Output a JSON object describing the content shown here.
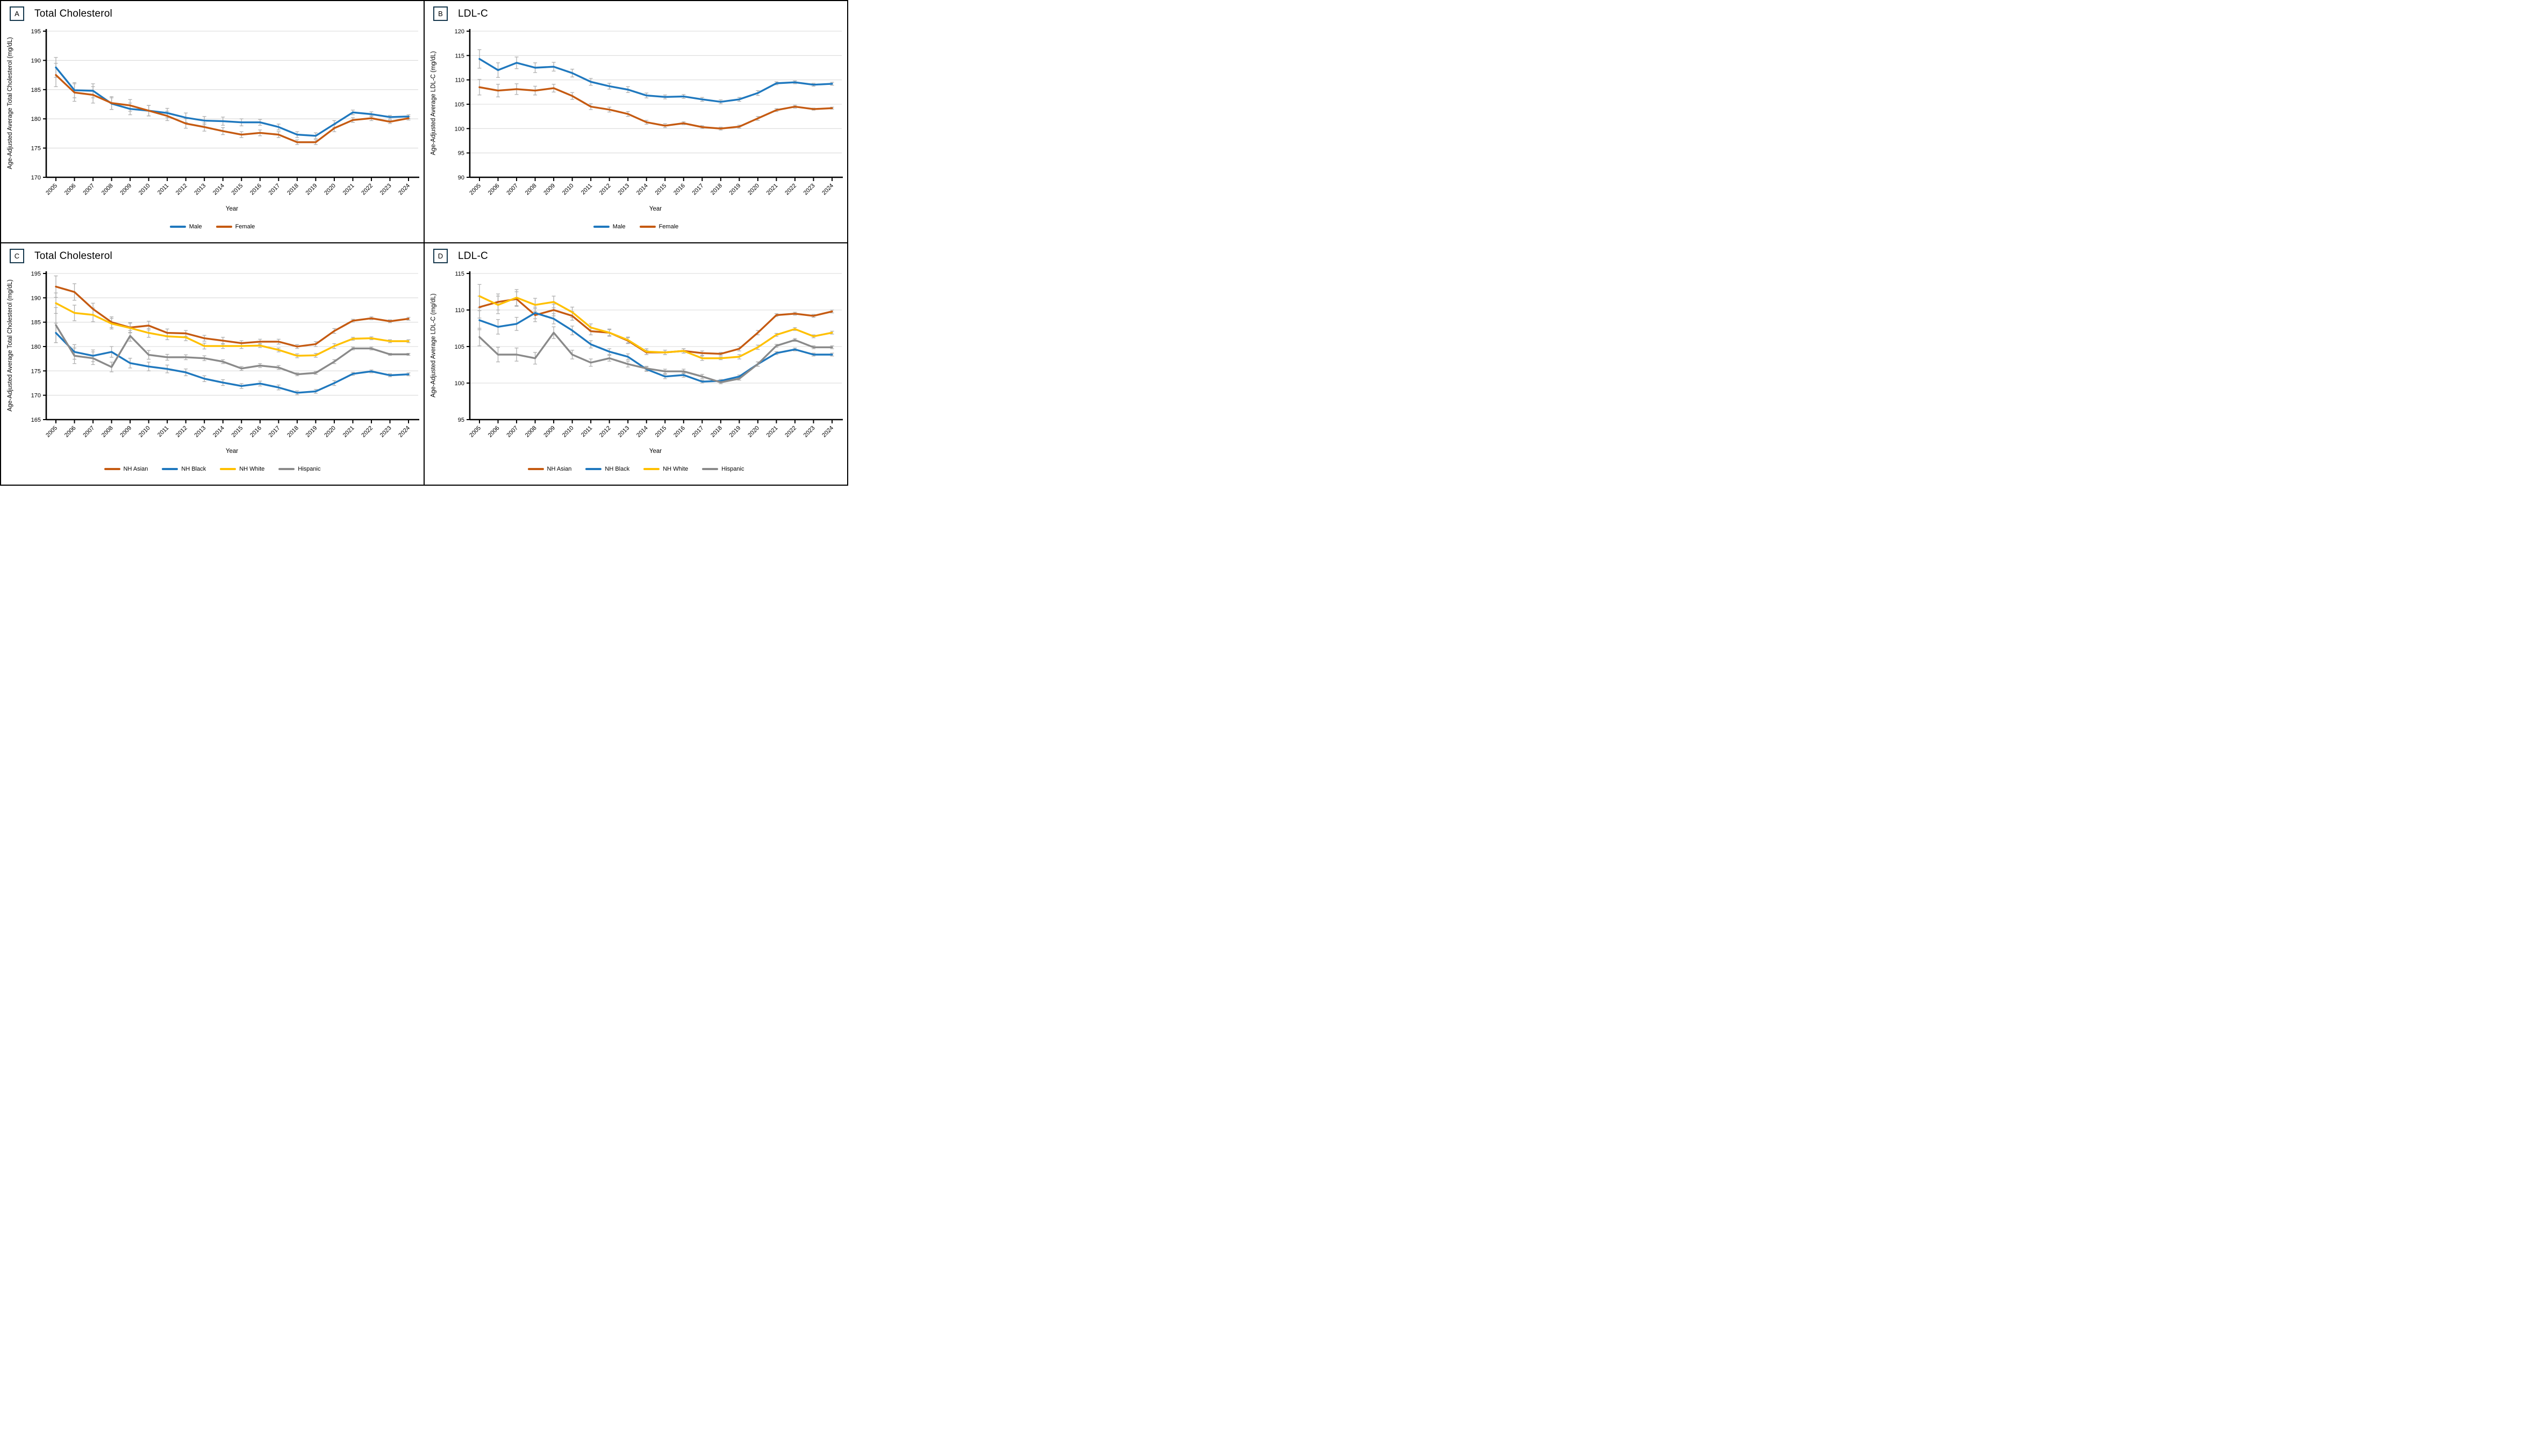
{
  "figure": {
    "background": "#ffffff",
    "border_color": "#000000"
  },
  "palette": {
    "male_blue": "#1F78BE",
    "female_orange": "#C55A11",
    "nh_asian": "#C55A11",
    "nh_black": "#1F78BE",
    "nh_white": "#FFC000",
    "hispanic": "#8A8A8A",
    "error_bar": "#AFAFAF",
    "gridline": "#D9D9D9",
    "axis": "#000000",
    "letter_box_border": "#17394E"
  },
  "chart_data": [
    {
      "type": "line",
      "panel_label": "A",
      "title": "Total Cholesterol",
      "xlabel": "Year",
      "ylabel": "Age-Adjusted Average Total Cholesterol (mg/dL)",
      "ylim": [
        170,
        195
      ],
      "ytick_step": 5,
      "grid": true,
      "legend_position": "bottom",
      "categories": [
        "2005",
        "2006",
        "2007",
        "2008",
        "2009",
        "2010",
        "2011",
        "2012",
        "2013",
        "2014",
        "2015",
        "2016",
        "2017",
        "2018",
        "2019",
        "2020",
        "2021",
        "2022",
        "2023",
        "2024"
      ],
      "series": [
        {
          "name": "Male",
          "color": "#1F78BE",
          "values": [
            188.8,
            184.9,
            184.8,
            182.6,
            181.7,
            181.4,
            181.0,
            180.2,
            179.7,
            179.6,
            179.4,
            179.4,
            178.6,
            177.3,
            177.1,
            179.1,
            181.1,
            180.8,
            180.3,
            180.4
          ],
          "err": [
            1.7,
            1.3,
            1.2,
            1.0,
            1.0,
            0.9,
            0.8,
            0.8,
            0.7,
            0.7,
            0.6,
            0.5,
            0.5,
            0.5,
            0.5,
            0.6,
            0.4,
            0.4,
            0.3,
            0.3
          ]
        },
        {
          "name": "Female",
          "color": "#C55A11",
          "values": [
            187.5,
            184.5,
            184.1,
            182.7,
            182.3,
            181.4,
            180.5,
            179.2,
            178.6,
            177.9,
            177.3,
            177.6,
            177.3,
            176.0,
            176.0,
            178.4,
            179.8,
            180.1,
            179.5,
            180.1
          ],
          "err": [
            2.0,
            1.5,
            1.4,
            1.1,
            1.0,
            0.9,
            0.8,
            0.8,
            0.7,
            0.6,
            0.5,
            0.5,
            0.5,
            0.4,
            0.4,
            0.6,
            0.4,
            0.4,
            0.3,
            0.3
          ]
        }
      ]
    },
    {
      "type": "line",
      "panel_label": "B",
      "title": "LDL-C",
      "xlabel": "Year",
      "ylabel": "Age-Adjusted Average LDL-C  (mg/dL)",
      "ylim": [
        90,
        120
      ],
      "ytick_step": 5,
      "grid": true,
      "legend_position": "bottom",
      "categories": [
        "2005",
        "2006",
        "2007",
        "2008",
        "2009",
        "2010",
        "2011",
        "2012",
        "2013",
        "2014",
        "2015",
        "2016",
        "2017",
        "2018",
        "2019",
        "2020",
        "2021",
        "2022",
        "2023",
        "2024"
      ],
      "series": [
        {
          "name": "Male",
          "color": "#1F78BE",
          "values": [
            114.3,
            112.0,
            113.5,
            112.5,
            112.7,
            111.4,
            109.6,
            108.7,
            108.0,
            106.8,
            106.5,
            106.6,
            106.0,
            105.5,
            106.0,
            107.3,
            109.3,
            109.5,
            109.0,
            109.2
          ],
          "err": [
            1.9,
            1.5,
            1.2,
            1.0,
            0.9,
            0.8,
            0.7,
            0.6,
            0.6,
            0.5,
            0.4,
            0.4,
            0.4,
            0.4,
            0.4,
            0.5,
            0.3,
            0.3,
            0.3,
            0.3
          ]
        },
        {
          "name": "Female",
          "color": "#C55A11",
          "values": [
            108.5,
            107.8,
            108.1,
            107.8,
            108.3,
            106.7,
            104.5,
            103.9,
            103.0,
            101.3,
            100.6,
            101.1,
            100.3,
            100.0,
            100.4,
            102.1,
            103.8,
            104.5,
            104.0,
            104.2
          ],
          "err": [
            1.6,
            1.3,
            1.1,
            0.9,
            0.8,
            0.7,
            0.6,
            0.5,
            0.5,
            0.4,
            0.4,
            0.3,
            0.3,
            0.3,
            0.3,
            0.4,
            0.3,
            0.3,
            0.2,
            0.2
          ]
        }
      ]
    },
    {
      "type": "line",
      "panel_label": "C",
      "title": "Total Cholesterol",
      "xlabel": "Year",
      "ylabel": "Age-Adjusted Average Total Cholesterol (mg/dL)",
      "ylim": [
        165,
        195
      ],
      "ytick_step": 5,
      "grid": true,
      "legend_position": "bottom",
      "categories": [
        "2005",
        "2006",
        "2007",
        "2008",
        "2009",
        "2010",
        "2011",
        "2012",
        "2013",
        "2014",
        "2015",
        "2016",
        "2017",
        "2018",
        "2019",
        "2020",
        "2021",
        "2022",
        "2023",
        "2024"
      ],
      "series": [
        {
          "name": "NH Asian",
          "color": "#C55A11",
          "values": [
            192.3,
            191.2,
            187.7,
            185.0,
            183.9,
            184.3,
            182.8,
            182.7,
            181.7,
            181.2,
            180.7,
            181.0,
            181.0,
            180.0,
            180.5,
            183.2,
            185.3,
            185.8,
            185.2,
            185.7
          ],
          "err": [
            2.2,
            1.7,
            1.2,
            1.1,
            1.0,
            0.9,
            0.8,
            0.6,
            0.6,
            0.7,
            0.5,
            0.5,
            0.5,
            0.4,
            0.5,
            0.5,
            0.3,
            0.3,
            0.3,
            0.3
          ]
        },
        {
          "name": "NH Black",
          "color": "#1F78BE",
          "values": [
            182.8,
            178.9,
            178.1,
            178.9,
            176.6,
            175.9,
            175.4,
            174.7,
            173.4,
            172.6,
            171.9,
            172.4,
            171.6,
            170.5,
            170.8,
            172.5,
            174.4,
            174.9,
            174.1,
            174.3
          ],
          "err": [
            2.0,
            1.5,
            1.2,
            1.1,
            1.0,
            0.9,
            0.8,
            0.7,
            0.6,
            0.6,
            0.5,
            0.5,
            0.5,
            0.4,
            0.4,
            0.5,
            0.3,
            0.3,
            0.3,
            0.3
          ]
        },
        {
          "name": "NH White",
          "color": "#FFC000",
          "values": [
            188.9,
            186.9,
            186.5,
            184.7,
            183.8,
            182.8,
            182.1,
            181.9,
            180.1,
            180.1,
            180.1,
            180.2,
            179.3,
            178.1,
            178.2,
            180.1,
            181.6,
            181.7,
            181.1,
            181.1
          ],
          "err": [
            2.1,
            1.6,
            1.4,
            1.1,
            1.0,
            0.9,
            0.7,
            0.7,
            0.6,
            0.5,
            0.5,
            0.4,
            0.4,
            0.4,
            0.4,
            0.5,
            0.3,
            0.3,
            0.3,
            0.3
          ]
        },
        {
          "name": "Hispanic",
          "color": "#8A8A8A",
          "values": [
            184.4,
            178.1,
            177.6,
            175.8,
            182.2,
            178.3,
            177.8,
            177.8,
            177.6,
            176.9,
            175.5,
            176.1,
            175.7,
            174.3,
            174.6,
            176.9,
            179.6,
            179.6,
            178.4,
            178.4
          ],
          "err": [
            3.6,
            1.6,
            1.3,
            1.0,
            1.1,
            0.9,
            0.6,
            0.5,
            0.5,
            0.4,
            0.4,
            0.4,
            0.4,
            0.3,
            0.3,
            0.4,
            0.3,
            0.3,
            0.2,
            0.2
          ]
        }
      ]
    },
    {
      "type": "line",
      "panel_label": "D",
      "title": "LDL-C",
      "xlabel": "Year",
      "ylabel": "Age-Adjusted Average LDL-C  (mg/dL)",
      "ylim": [
        95,
        115
      ],
      "ytick_step": 5,
      "grid": true,
      "legend_position": "bottom",
      "categories": [
        "2005",
        "2006",
        "2007",
        "2008",
        "2009",
        "2010",
        "2011",
        "2012",
        "2013",
        "2014",
        "2015",
        "2016",
        "2017",
        "2018",
        "2019",
        "2020",
        "2021",
        "2022",
        "2023",
        "2024"
      ],
      "series": [
        {
          "name": "NH Asian",
          "color": "#C55A11",
          "values": [
            110.4,
            111.1,
            111.5,
            109.3,
            110.0,
            109.2,
            107.1,
            106.9,
            105.8,
            104.2,
            104.2,
            104.4,
            104.1,
            104.0,
            104.7,
            106.9,
            109.3,
            109.5,
            109.2,
            109.8
          ],
          "err": [
            1.5,
            1.1,
            1.0,
            0.9,
            0.8,
            0.6,
            0.5,
            0.4,
            0.4,
            0.3,
            0.3,
            0.3,
            0.3,
            0.2,
            0.3,
            0.3,
            0.2,
            0.2,
            0.2,
            0.2
          ]
        },
        {
          "name": "NH Black",
          "color": "#1F78BE",
          "values": [
            108.6,
            107.7,
            108.1,
            109.6,
            108.8,
            107.2,
            105.3,
            104.3,
            103.6,
            101.9,
            100.9,
            101.1,
            100.2,
            100.3,
            100.9,
            102.6,
            104.1,
            104.6,
            103.9,
            103.9
          ],
          "err": [
            1.3,
            1.0,
            0.9,
            0.8,
            0.7,
            0.6,
            0.5,
            0.4,
            0.4,
            0.3,
            0.3,
            0.3,
            0.2,
            0.2,
            0.2,
            0.3,
            0.2,
            0.2,
            0.2,
            0.2
          ]
        },
        {
          "name": "NH White",
          "color": "#FFC000",
          "values": [
            111.9,
            110.7,
            111.7,
            110.7,
            111.1,
            109.7,
            107.6,
            106.9,
            105.9,
            104.3,
            104.2,
            104.4,
            103.4,
            103.4,
            103.6,
            104.9,
            106.6,
            107.4,
            106.4,
            106.9
          ],
          "err": [
            1.6,
            1.2,
            1.1,
            0.9,
            0.8,
            0.7,
            0.5,
            0.5,
            0.4,
            0.4,
            0.3,
            0.3,
            0.3,
            0.2,
            0.3,
            0.3,
            0.2,
            0.2,
            0.2,
            0.2
          ]
        },
        {
          "name": "Hispanic",
          "color": "#8A8A8A",
          "values": [
            106.3,
            103.9,
            103.9,
            103.4,
            106.9,
            103.9,
            102.8,
            103.4,
            102.6,
            102.0,
            101.6,
            101.6,
            100.9,
            100.1,
            100.6,
            102.6,
            105.1,
            105.9,
            104.9,
            104.9
          ],
          "err": [
            1.2,
            1.0,
            0.9,
            0.8,
            0.8,
            0.6,
            0.5,
            0.4,
            0.4,
            0.3,
            0.3,
            0.3,
            0.3,
            0.2,
            0.2,
            0.3,
            0.2,
            0.2,
            0.2,
            0.2
          ]
        }
      ]
    }
  ]
}
